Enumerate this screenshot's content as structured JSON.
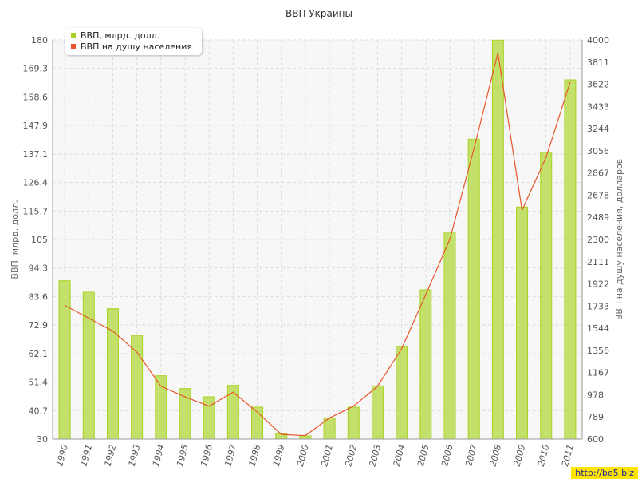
{
  "title": "ВВП Украины",
  "legend": [
    {
      "label": "ВВП, млрд. долл.",
      "color": "#a8d322"
    },
    {
      "label": "ВВП на душу населения",
      "color": "#e8562a"
    }
  ],
  "watermark": "http://be5.biz",
  "chart_data": {
    "type": "bar",
    "title": "ВВП Украины",
    "categories": [
      "1990",
      "1991",
      "1992",
      "1993",
      "1994",
      "1995",
      "1996",
      "1997",
      "1998",
      "1999",
      "2000",
      "2001",
      "2002",
      "2003",
      "2004",
      "2005",
      "2006",
      "2007",
      "2008",
      "2009",
      "2010",
      "2011"
    ],
    "series": [
      {
        "name": "ВВП, млрд. долл.",
        "type": "bar",
        "axis": "left",
        "values": [
          89.5,
          85.2,
          79.0,
          69.0,
          53.8,
          49.0,
          45.9,
          50.2,
          42.0,
          32.0,
          31.2,
          38.0,
          42.0,
          50.0,
          64.8,
          86.1,
          107.8,
          142.7,
          179.9,
          117.2,
          137.8,
          165.0
        ]
      },
      {
        "name": "ВВП на душу населения",
        "type": "line",
        "axis": "right",
        "values": [
          1740,
          1630,
          1520,
          1340,
          1050,
          960,
          880,
          1000,
          830,
          640,
          630,
          780,
          880,
          1050,
          1370,
          1830,
          2300,
          3070,
          3890,
          2550,
          3000,
          3640
        ]
      }
    ],
    "ylabel_left": "ВВП, млрд. долл.",
    "ylabel_right": "ВВП на душу населения, долларов",
    "ylim_left": [
      30,
      180
    ],
    "ylim_right": [
      600,
      4000
    ],
    "yticks_left": [
      "30",
      "40.7",
      "51.4",
      "62.1",
      "72.9",
      "83.6",
      "94.3",
      "105",
      "115.7",
      "126.4",
      "137.1",
      "147.9",
      "158.6",
      "169.3",
      "180"
    ],
    "yticks_right": [
      "600",
      "789",
      "978",
      "1167",
      "1356",
      "1544",
      "1733",
      "1922",
      "2111",
      "2300",
      "2489",
      "2678",
      "2867",
      "3056",
      "3244",
      "3433",
      "3622",
      "3811",
      "4000"
    ],
    "grid": true,
    "legend_position": "top-left"
  }
}
